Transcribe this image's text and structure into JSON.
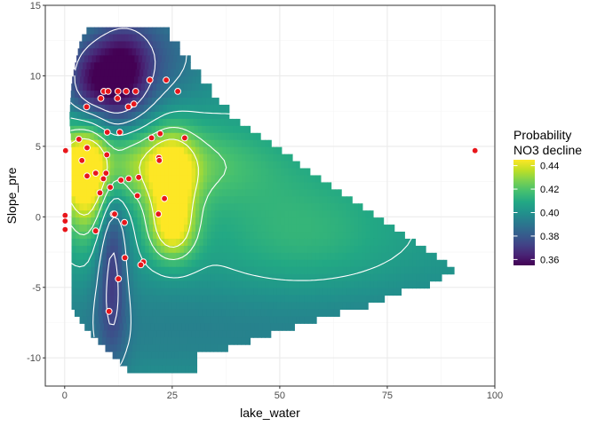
{
  "chart_data": {
    "type": "heatmap",
    "xlabel": "lake_water",
    "ylabel": "Slope_pre",
    "xlim": [
      -4.5,
      100
    ],
    "ylim": [
      -12,
      15
    ],
    "x_ticks": [
      0,
      25,
      50,
      75,
      100
    ],
    "y_ticks": [
      -10,
      -5,
      0,
      5,
      10,
      15
    ],
    "x_tick_labels": [
      "0",
      "25",
      "50",
      "75",
      "100"
    ],
    "y_tick_labels": [
      "-10",
      "-5",
      "0",
      "5",
      "10",
      "15"
    ],
    "legend": {
      "title_line1": "Probability",
      "title_line2": "NO3 decline",
      "position": "right",
      "range": [
        0.355,
        0.445
      ],
      "ticks": [
        0.36,
        0.38,
        0.4,
        0.42,
        0.44
      ],
      "tick_labels": [
        "0.36",
        "0.38",
        "0.40",
        "0.42",
        "0.44"
      ]
    },
    "grid": true,
    "fill_region": {
      "y_bands": [
        {
          "y": 13.2,
          "x_max": 24.3
        },
        {
          "y": 12.7,
          "x_max": 24.3
        },
        {
          "y": 12.2,
          "x_max": 26.7
        },
        {
          "y": 11.7,
          "x_max": 26.7
        },
        {
          "y": 11.2,
          "x_max": 29.2
        },
        {
          "y": 10.7,
          "x_max": 29.2
        },
        {
          "y": 10.2,
          "x_max": 31.6
        },
        {
          "y": 9.7,
          "x_max": 31.6
        },
        {
          "y": 9.2,
          "x_max": 34.1
        },
        {
          "y": 8.7,
          "x_max": 34.1
        },
        {
          "y": 8.2,
          "x_max": 35.8
        },
        {
          "y": 7.7,
          "x_max": 38.2
        },
        {
          "y": 7.2,
          "x_max": 38.2
        },
        {
          "y": 6.7,
          "x_max": 40.7
        },
        {
          "y": 6.2,
          "x_max": 43.1
        },
        {
          "y": 5.7,
          "x_max": 45.5
        },
        {
          "y": 5.2,
          "x_max": 48.0
        },
        {
          "y": 4.7,
          "x_max": 50.4
        },
        {
          "y": 4.2,
          "x_max": 52.9
        },
        {
          "y": 3.7,
          "x_max": 54.6
        },
        {
          "y": 3.2,
          "x_max": 57.0
        },
        {
          "y": 2.7,
          "x_max": 59.5
        },
        {
          "y": 2.2,
          "x_max": 61.9
        },
        {
          "y": 1.7,
          "x_max": 64.3
        },
        {
          "y": 1.2,
          "x_max": 66.8
        },
        {
          "y": 0.7,
          "x_max": 69.2
        },
        {
          "y": 0.2,
          "x_max": 71.7
        },
        {
          "y": -0.3,
          "x_max": 74.1
        },
        {
          "y": -0.8,
          "x_max": 76.6
        },
        {
          "y": -1.3,
          "x_max": 79.0
        },
        {
          "y": -1.8,
          "x_max": 81.5
        },
        {
          "y": -2.3,
          "x_max": 83.9
        },
        {
          "y": -2.8,
          "x_max": 86.4
        },
        {
          "y": -3.3,
          "x_max": 88.8
        },
        {
          "y": -3.8,
          "x_max": 90.5
        },
        {
          "y": -4.3,
          "x_max": 87.6
        },
        {
          "y": -4.8,
          "x_max": 84.8
        },
        {
          "y": -5.3,
          "x_max": 78.2
        },
        {
          "y": -5.8,
          "x_max": 74.3
        },
        {
          "y": -6.3,
          "x_max": 70.5
        },
        {
          "y": -6.8,
          "x_max": 63.9
        },
        {
          "y": -7.3,
          "x_max": 58.5
        },
        {
          "y": -7.8,
          "x_max": 53.4
        },
        {
          "y": -8.3,
          "x_max": 47.9
        },
        {
          "y": -8.8,
          "x_max": 43.1
        },
        {
          "y": -9.3,
          "x_max": 37.9
        },
        {
          "y": -9.8,
          "x_max": 30.7
        },
        {
          "y": -10.3,
          "x_max": 30.7
        },
        {
          "y": -10.8,
          "x_max": 30.7
        }
      ],
      "band_height": 0.5,
      "x_min_profile": [
        {
          "y": 13.45,
          "x_min": 5.6
        },
        {
          "y": 12.5,
          "x_min": 3.6
        },
        {
          "y": 9.5,
          "x_min": 1.6
        },
        {
          "y": 7.0,
          "x_min": 1.1
        },
        {
          "y": 5.0,
          "x_min": 1.6
        },
        {
          "y": -6.5,
          "x_min": 1.6
        },
        {
          "y": -8.0,
          "x_min": 5.1
        },
        {
          "y": -9.5,
          "x_min": 10.1
        },
        {
          "y": -11.05,
          "x_min": 15.4
        }
      ]
    },
    "points": [
      {
        "x": 0.2,
        "y": 4.7
      },
      {
        "x": 3.3,
        "y": 5.5
      },
      {
        "x": 4.0,
        "y": 4.0
      },
      {
        "x": 5.2,
        "y": 4.9
      },
      {
        "x": 5.2,
        "y": 2.9
      },
      {
        "x": 0.1,
        "y": 0.1
      },
      {
        "x": 0.1,
        "y": -0.3
      },
      {
        "x": 0.1,
        "y": -0.9
      },
      {
        "x": 7.2,
        "y": -1.0
      },
      {
        "x": 5.1,
        "y": 7.8
      },
      {
        "x": 8.4,
        "y": 8.4
      },
      {
        "x": 9.1,
        "y": 8.9
      },
      {
        "x": 10.1,
        "y": 8.9
      },
      {
        "x": 12.4,
        "y": 8.9
      },
      {
        "x": 12.3,
        "y": 8.4
      },
      {
        "x": 14.3,
        "y": 8.9
      },
      {
        "x": 16.5,
        "y": 8.9
      },
      {
        "x": 14.8,
        "y": 7.8
      },
      {
        "x": 16.1,
        "y": 8.0
      },
      {
        "x": 19.8,
        "y": 9.7
      },
      {
        "x": 23.6,
        "y": 9.7
      },
      {
        "x": 26.3,
        "y": 8.9
      },
      {
        "x": 9.9,
        "y": 6.0
      },
      {
        "x": 12.8,
        "y": 6.0
      },
      {
        "x": 20.2,
        "y": 5.6
      },
      {
        "x": 22.2,
        "y": 5.9
      },
      {
        "x": 27.9,
        "y": 5.6
      },
      {
        "x": 9.8,
        "y": 4.4
      },
      {
        "x": 7.2,
        "y": 3.1
      },
      {
        "x": 9.0,
        "y": 2.7
      },
      {
        "x": 9.6,
        "y": 3.1
      },
      {
        "x": 8.2,
        "y": 1.7
      },
      {
        "x": 10.6,
        "y": 2.1
      },
      {
        "x": 13.1,
        "y": 2.6
      },
      {
        "x": 14.9,
        "y": 2.7
      },
      {
        "x": 17.2,
        "y": 2.8
      },
      {
        "x": 16.9,
        "y": 1.5
      },
      {
        "x": 21.9,
        "y": 4.2
      },
      {
        "x": 22.0,
        "y": 4.0
      },
      {
        "x": 23.2,
        "y": 1.3
      },
      {
        "x": 21.8,
        "y": 0.2
      },
      {
        "x": 11.3,
        "y": 0.2
      },
      {
        "x": 11.6,
        "y": 0.2
      },
      {
        "x": 13.9,
        "y": -0.4
      },
      {
        "x": 14.0,
        "y": -2.9
      },
      {
        "x": 18.3,
        "y": -3.2
      },
      {
        "x": 17.7,
        "y": -3.4
      },
      {
        "x": 12.5,
        "y": -4.4
      },
      {
        "x": 10.3,
        "y": -6.7
      },
      {
        "x": 95.4,
        "y": 4.7
      }
    ]
  },
  "colors": {
    "viridis_low": "#440154",
    "viridis_high": "#fde725",
    "point_fill": "#e8161b",
    "point_stroke": "#ffffff",
    "contour": "#ffffff",
    "panel_border": "#333333",
    "grid_major": "#ebebeb",
    "grid_minor": "#f5f5f5"
  }
}
